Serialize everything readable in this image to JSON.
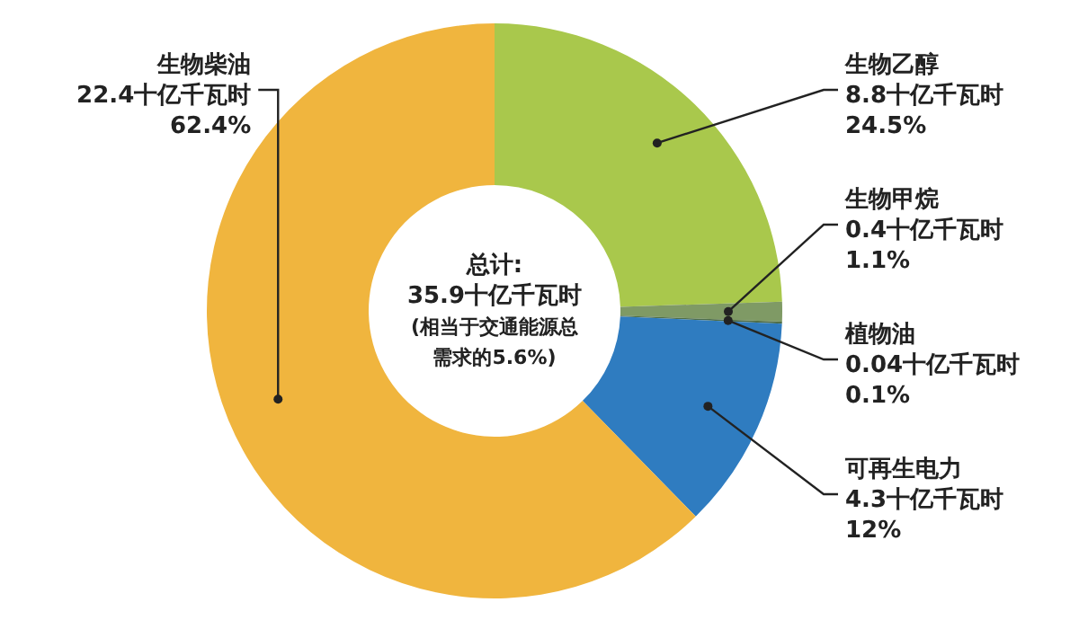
{
  "chart_data": {
    "type": "donut",
    "categories": [
      "生物乙醇",
      "生物甲烷",
      "植物油",
      "可再生电力",
      "生物柴油"
    ],
    "values": [
      8.8,
      0.4,
      0.04,
      4.3,
      22.4
    ],
    "value_labels": [
      "8.8十亿千瓦时\n24.5%",
      "0.4十亿千瓦时\n1.1%",
      "0.04十亿千瓦时\n0.1%",
      "4.3十亿千瓦时\n12%",
      "22.4十亿千瓦时\n62.4%"
    ],
    "colors": [
      "#a9c84c",
      "#7f9a65",
      "#4f6e48",
      "#2f7cc0",
      "#f0b53e"
    ],
    "annotations": [
      "总计:",
      "35.9十亿千瓦时",
      "(相当于交通能源总需求的5.6%)"
    ]
  }
}
